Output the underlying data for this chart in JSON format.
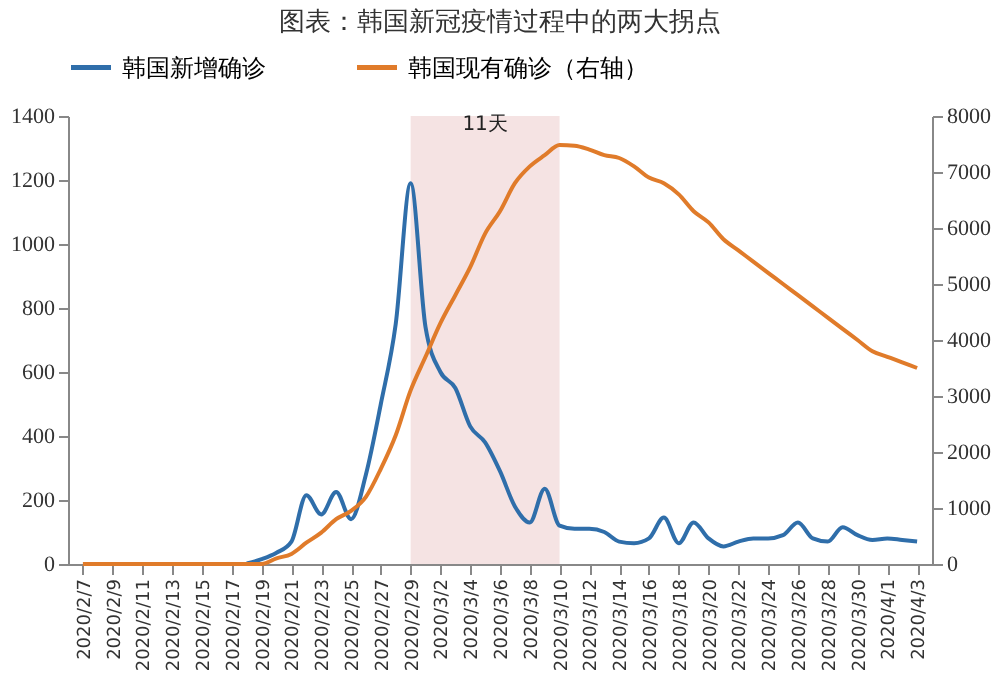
{
  "chart_data": {
    "type": "line",
    "title": "图表：韩国新冠疫情过程中的两大拐点",
    "x": [
      "2020-02-07",
      "2020-02-08",
      "2020-02-09",
      "2020-02-10",
      "2020-02-11",
      "2020-02-12",
      "2020-02-13",
      "2020-02-14",
      "2020-02-15",
      "2020-02-16",
      "2020-02-17",
      "2020-02-18",
      "2020-02-19",
      "2020-02-20",
      "2020-02-21",
      "2020-02-22",
      "2020-02-23",
      "2020-02-24",
      "2020-02-25",
      "2020-02-26",
      "2020-02-27",
      "2020-02-28",
      "2020-02-29",
      "2020-03-01",
      "2020-03-02",
      "2020-03-03",
      "2020-03-04",
      "2020-03-05",
      "2020-03-06",
      "2020-03-07",
      "2020-03-08",
      "2020-03-09",
      "2020-03-10",
      "2020-03-11",
      "2020-03-12",
      "2020-03-13",
      "2020-03-14",
      "2020-03-15",
      "2020-03-16",
      "2020-03-17",
      "2020-03-18",
      "2020-03-19",
      "2020-03-20",
      "2020-03-21",
      "2020-03-22",
      "2020-03-23",
      "2020-03-24",
      "2020-03-25",
      "2020-03-26",
      "2020-03-27",
      "2020-03-28",
      "2020-03-29",
      "2020-03-30",
      "2020-03-31",
      "2020-04-01",
      "2020-04-02",
      "2020-04-03"
    ],
    "series": [
      {
        "name": "韩国新增确诊",
        "color": "#2f6eaa",
        "values": [
          null,
          null,
          null,
          null,
          null,
          null,
          null,
          null,
          null,
          null,
          null,
          2,
          15,
          35,
          70,
          215,
          155,
          225,
          140,
          280,
          500,
          750,
          1190,
          740,
          600,
          550,
          430,
          380,
          290,
          180,
          130,
          235,
          120,
          110,
          110,
          100,
          70,
          65,
          80,
          145,
          65,
          130,
          80,
          55,
          70,
          80,
          80,
          90,
          130,
          80,
          70,
          115,
          90,
          75,
          80,
          75,
          70
        ]
      },
      {
        "name": "韩国现有确诊（右轴）",
        "color": "#e07b2a",
        "axis": "y2",
        "values": [
          0,
          0,
          0,
          0,
          0,
          0,
          0,
          0,
          0,
          0,
          0,
          0,
          0,
          100,
          180,
          380,
          560,
          800,
          950,
          1200,
          1700,
          2300,
          3100,
          3700,
          4300,
          4800,
          5300,
          5900,
          6300,
          6800,
          7100,
          7300,
          7480,
          7470,
          7400,
          7300,
          7250,
          7100,
          6900,
          6800,
          6600,
          6300,
          6100,
          5800,
          5600,
          5400,
          5200,
          5000,
          4800,
          4600,
          4400,
          4200,
          4000,
          3800,
          3700,
          3600,
          3500
        ]
      }
    ],
    "xlim": [
      "2020-02-06",
      "2020-04-04"
    ],
    "xticks": [
      {
        "value": "2020-02-07",
        "label": "2020/2/7"
      },
      {
        "value": "2020-02-09",
        "label": "2020/2/9"
      },
      {
        "value": "2020-02-11",
        "label": "2020/2/11"
      },
      {
        "value": "2020-02-13",
        "label": "2020/2/13"
      },
      {
        "value": "2020-02-15",
        "label": "2020/2/15"
      },
      {
        "value": "2020-02-17",
        "label": "2020/2/17"
      },
      {
        "value": "2020-02-19",
        "label": "2020/2/19"
      },
      {
        "value": "2020-02-21",
        "label": "2020/2/21"
      },
      {
        "value": "2020-02-23",
        "label": "2020/2/23"
      },
      {
        "value": "2020-02-25",
        "label": "2020/2/25"
      },
      {
        "value": "2020-02-27",
        "label": "2020/2/27"
      },
      {
        "value": "2020-02-29",
        "label": "2020/2/29"
      },
      {
        "value": "2020-03-02",
        "label": "2020/3/2"
      },
      {
        "value": "2020-03-04",
        "label": "2020/3/4"
      },
      {
        "value": "2020-03-06",
        "label": "2020/3/6"
      },
      {
        "value": "2020-03-08",
        "label": "2020/3/8"
      },
      {
        "value": "2020-03-10",
        "label": "2020/3/10"
      },
      {
        "value": "2020-03-12",
        "label": "2020/3/12"
      },
      {
        "value": "2020-03-14",
        "label": "2020/3/14"
      },
      {
        "value": "2020-03-16",
        "label": "2020/3/16"
      },
      {
        "value": "2020-03-18",
        "label": "2020/3/18"
      },
      {
        "value": "2020-03-20",
        "label": "2020/3/20"
      },
      {
        "value": "2020-03-22",
        "label": "2020/3/22"
      },
      {
        "value": "2020-03-24",
        "label": "2020/3/24"
      },
      {
        "value": "2020-03-26",
        "label": "2020/3/26"
      },
      {
        "value": "2020-03-28",
        "label": "2020/3/28"
      },
      {
        "value": "2020-03-30",
        "label": "2020/3/30"
      },
      {
        "value": "2020-04-01",
        "label": "2020/4/1"
      },
      {
        "value": "2020-04-03",
        "label": "2020/4/3"
      }
    ],
    "ylim": [
      0,
      1400
    ],
    "yticks": [
      0,
      200,
      400,
      600,
      800,
      1000,
      1200,
      1400
    ],
    "y2lim": [
      0,
      8000
    ],
    "y2ticks": [
      0,
      1000,
      2000,
      3000,
      4000,
      5000,
      6000,
      7000,
      8000
    ],
    "bands": [
      {
        "axis": "x",
        "from": "2020-02-29",
        "to": "2020-03-10",
        "label": "11天",
        "color": "#f2dcdc"
      }
    ],
    "legend": "top",
    "grid": false
  }
}
